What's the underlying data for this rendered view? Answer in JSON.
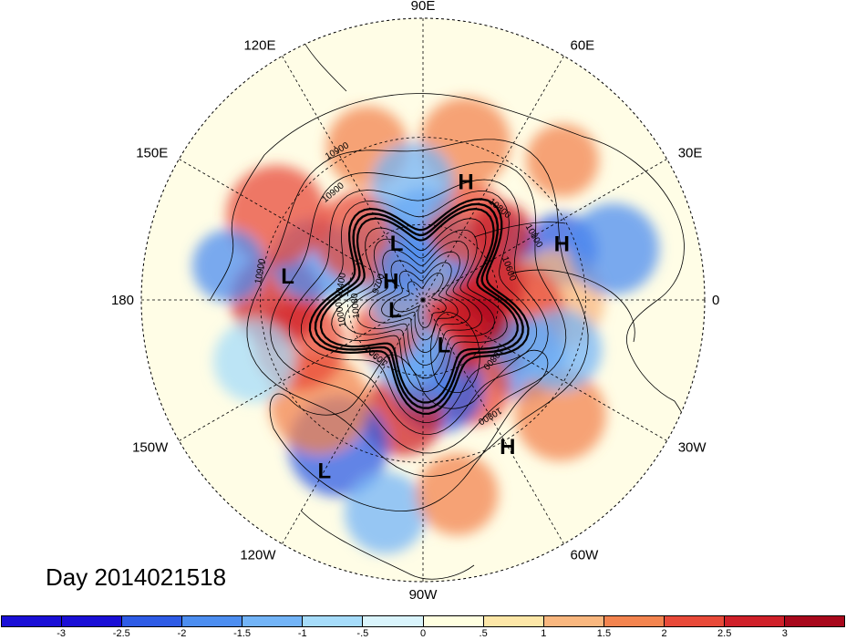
{
  "map": {
    "title": "Day 2014021518",
    "longitude_labels": [
      {
        "text": "90E",
        "lon": 90
      },
      {
        "text": "60E",
        "lon": 60
      },
      {
        "text": "30E",
        "lon": 30
      },
      {
        "text": "0",
        "lon": 0
      },
      {
        "text": "30W",
        "lon": -30
      },
      {
        "text": "60W",
        "lon": -60
      },
      {
        "text": "90W",
        "lon": -90
      },
      {
        "text": "120W",
        "lon": -120
      },
      {
        "text": "150W",
        "lon": -150
      },
      {
        "text": "180",
        "lon": 180
      },
      {
        "text": "150E",
        "lon": 150
      },
      {
        "text": "120E",
        "lon": 120
      }
    ],
    "pressure_centers": [
      {
        "type": "H",
        "lon": 70,
        "lat": 42
      },
      {
        "type": "H",
        "lon": 22,
        "lat": 34
      },
      {
        "type": "L",
        "lon": 115,
        "lat": 65
      },
      {
        "type": "H",
        "lon": 150,
        "lat": 75
      },
      {
        "type": "L",
        "lon": 170,
        "lat": 38
      },
      {
        "type": "L",
        "lon": 200,
        "lat": 78
      },
      {
        "type": "L",
        "lon": 295,
        "lat": 70
      },
      {
        "type": "L",
        "lon": 240,
        "lat": 20
      },
      {
        "type": "H",
        "lon": 300,
        "lat": 28
      }
    ],
    "contour_labels": [
      "10900",
      "10900",
      "10800",
      "10800",
      "10600",
      "10400",
      "9700",
      "10080",
      "10000",
      "10900",
      "10900",
      "10800",
      "10800"
    ],
    "colors": {
      "continent_line": "#000000",
      "contour_line": "#000000",
      "grid_line": "#000000"
    }
  },
  "colorbar": {
    "colors": [
      "#1a0fd6",
      "#2e5ce6",
      "#4d8ef0",
      "#73b4f7",
      "#a6dcfa",
      "#d9f4fc",
      "#ffffe0",
      "#fde7a8",
      "#f9b77f",
      "#f3844f",
      "#e84a39",
      "#cf2029",
      "#a8081c"
    ],
    "tick_labels": [
      "-3",
      "-2.5",
      "-2",
      "-1.5",
      "-1",
      "-.5",
      "0",
      ".5",
      "1",
      "1.5",
      "2",
      "2.5",
      "3"
    ]
  }
}
